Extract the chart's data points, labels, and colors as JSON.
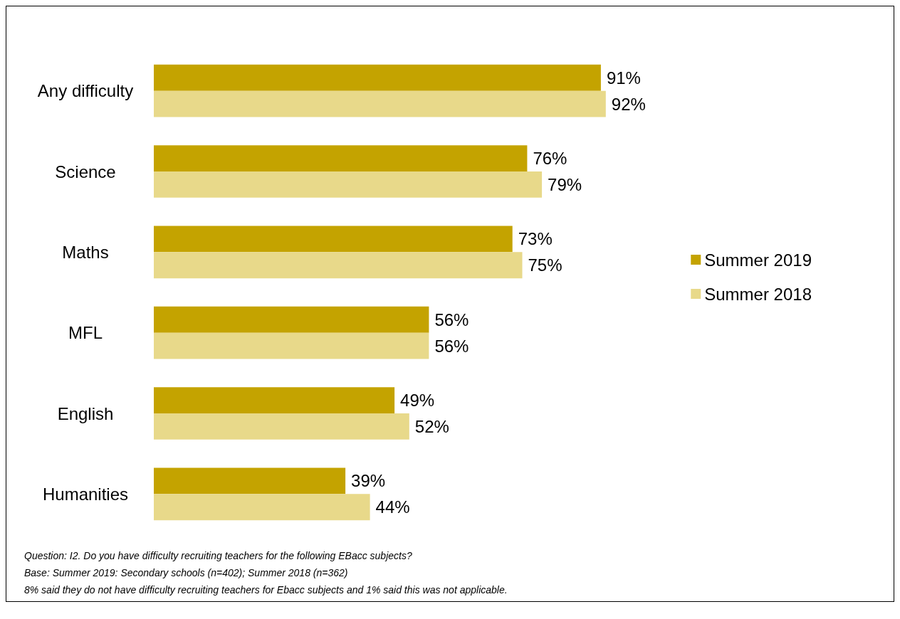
{
  "chart_data": {
    "type": "bar",
    "orientation": "horizontal",
    "categories": [
      "Any difficulty",
      "Science",
      "Maths",
      "MFL",
      "English",
      "Humanities"
    ],
    "series": [
      {
        "name": "Summer 2019",
        "color": "#c4a300",
        "values": [
          91,
          76,
          73,
          56,
          49,
          39
        ],
        "value_labels": [
          "91%",
          "76%",
          "73%",
          "56%",
          "49%",
          "39%"
        ]
      },
      {
        "name": "Summer 2018",
        "color": "#e8d98a",
        "values": [
          92,
          79,
          75,
          56,
          52,
          44
        ],
        "value_labels": [
          "92%",
          "79%",
          "75%",
          "56%",
          "52%",
          "44%"
        ]
      }
    ],
    "legend": "right",
    "annotations": [
      "Question: I2. Do you have difficulty recruiting teachers for the following EBacc subjects?",
      "Base: Summer 2019: Secondary schools (n=402); Summer 2018 (n=362)",
      "8% said they do not have difficulty recruiting teachers for Ebacc subjects and 1% said this was not applicable."
    ]
  }
}
